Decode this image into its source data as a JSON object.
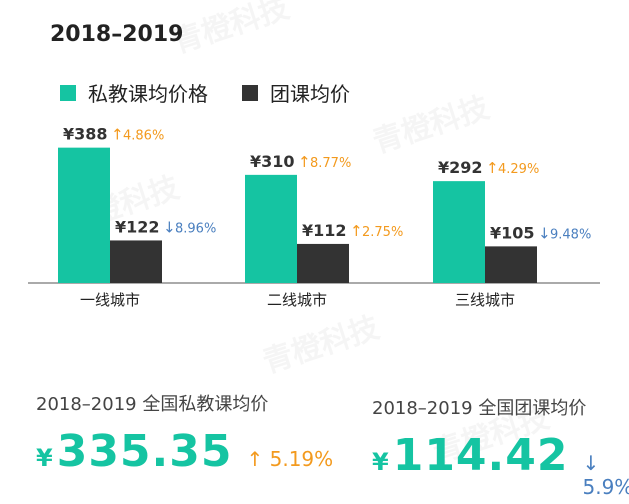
{
  "title": "2018–2019",
  "legend": [
    {
      "label": "私教课均价格",
      "color": "#15c4a2"
    },
    {
      "label": "团课均价",
      "color": "#333333"
    }
  ],
  "chart_data": {
    "type": "bar",
    "categories": [
      "一线城市",
      "二线城市",
      "三线城市"
    ],
    "series": [
      {
        "name": "私教课均价格",
        "color": "#15c4a2",
        "values": [
          388,
          310,
          292
        ],
        "labels": [
          "¥388",
          "¥310",
          "¥292"
        ],
        "changes": [
          {
            "dir": "up",
            "text": "4.86%"
          },
          {
            "dir": "up",
            "text": "8.77%"
          },
          {
            "dir": "up",
            "text": "4.29%"
          }
        ]
      },
      {
        "name": "团课均价",
        "color": "#333333",
        "values": [
          122,
          112,
          105
        ],
        "labels": [
          "¥122",
          "¥112",
          "¥105"
        ],
        "changes": [
          {
            "dir": "down",
            "text": "8.96%"
          },
          {
            "dir": "up",
            "text": "2.75%"
          },
          {
            "dir": "down",
            "text": "9.48%"
          }
        ]
      }
    ],
    "ylim": [
      0,
      430
    ],
    "grid": false,
    "legend_position": "top-left"
  },
  "summary": {
    "private": {
      "label": "2018–2019 全国私教课均价",
      "currency": "¥",
      "value": "335.35",
      "arrow": "↑",
      "change": "5.19%"
    },
    "group": {
      "label": "2018–2019 全国团课均价",
      "currency": "¥",
      "value": "114.42",
      "arrow": "↓",
      "change": "5.9%"
    }
  },
  "watermark": "青橙科技",
  "colors": {
    "accent": "#15c4a2",
    "dark": "#333333",
    "up": "#f39a1e",
    "down": "#4a7fbf"
  }
}
